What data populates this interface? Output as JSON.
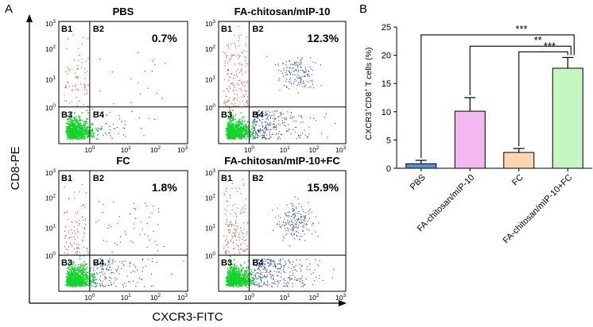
{
  "panel_a": {
    "letter": "A",
    "y_axis_label": "CD8-PE",
    "x_axis_label": "CXCR3-FITC",
    "y_ticks": [
      "10",
      "10",
      "10",
      "10"
    ],
    "y_tick_exps": [
      "0",
      "1",
      "2",
      "3"
    ],
    "x_ticks": [
      "10",
      "10",
      "10",
      "10"
    ],
    "x_tick_exps": [
      "0",
      "1",
      "2",
      "3"
    ],
    "quadrants": [
      "B1",
      "B2",
      "B3",
      "B4"
    ],
    "plots": [
      {
        "title": "PBS",
        "percent": "0.7%"
      },
      {
        "title": "FA-chitosan/mIP-10",
        "percent": "12.3%"
      },
      {
        "title": "FC",
        "percent": "1.8%"
      },
      {
        "title": "FA-chitosan/mIP-10+FC",
        "percent": "15.9%"
      }
    ]
  },
  "chart_data": {
    "type": "bar",
    "panel_letter": "B",
    "title": "",
    "xlabel": "",
    "ylabel": "CXCR3",
    "ylabel_sup1": "+",
    "ylabel_mid": "CD8",
    "ylabel_sup2": "+",
    "ylabel_end": " T cells (%)",
    "ylim": [
      0,
      25
    ],
    "yticks": [
      0,
      5,
      10,
      15,
      20,
      25
    ],
    "categories": [
      "PBS",
      "FA-chitosan/mIP-10",
      "FC",
      "FA-chitosan/mIP-10+FC"
    ],
    "values": [
      0.8,
      10.1,
      2.8,
      17.7
    ],
    "errors": [
      0.6,
      2.4,
      0.7,
      1.9
    ],
    "colors": [
      "#5b8ed6",
      "#f2b8ef",
      "#fcd6b0",
      "#c6f7c2"
    ],
    "significance": [
      {
        "label": "***",
        "from": 0,
        "to": 3
      },
      {
        "label": "**",
        "from": 1,
        "to": 3
      },
      {
        "label": "***",
        "from": 2,
        "to": 3
      }
    ]
  }
}
